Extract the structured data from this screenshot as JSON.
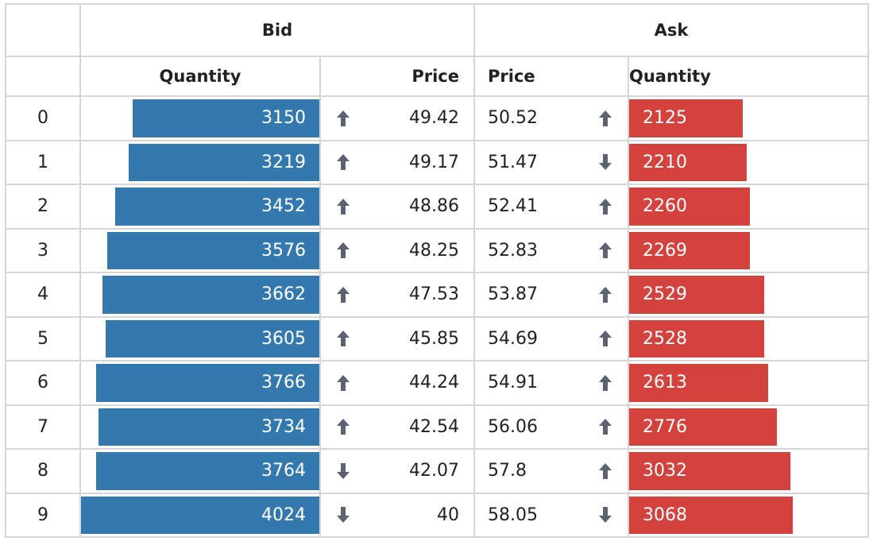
{
  "headers": {
    "bid": "Bid",
    "ask": "Ask",
    "bid_quantity": "Quantity",
    "bid_price": "Price",
    "ask_price": "Price",
    "ask_quantity": "Quantity"
  },
  "max_quantity": 4024,
  "colors": {
    "bid_bar": "#3479ae",
    "ask_bar": "#d4423e",
    "arrow": "#5d6272",
    "border": "#d6d6d6"
  },
  "rows": [
    {
      "index": "0",
      "bid_qty": "3150",
      "bid_dir": "up",
      "bid_price": "49.42",
      "ask_price": "50.52",
      "ask_dir": "up",
      "ask_qty": "2125"
    },
    {
      "index": "1",
      "bid_qty": "3219",
      "bid_dir": "up",
      "bid_price": "49.17",
      "ask_price": "51.47",
      "ask_dir": "down",
      "ask_qty": "2210"
    },
    {
      "index": "2",
      "bid_qty": "3452",
      "bid_dir": "up",
      "bid_price": "48.86",
      "ask_price": "52.41",
      "ask_dir": "up",
      "ask_qty": "2260"
    },
    {
      "index": "3",
      "bid_qty": "3576",
      "bid_dir": "up",
      "bid_price": "48.25",
      "ask_price": "52.83",
      "ask_dir": "up",
      "ask_qty": "2269"
    },
    {
      "index": "4",
      "bid_qty": "3662",
      "bid_dir": "up",
      "bid_price": "47.53",
      "ask_price": "53.87",
      "ask_dir": "up",
      "ask_qty": "2529"
    },
    {
      "index": "5",
      "bid_qty": "3605",
      "bid_dir": "up",
      "bid_price": "45.85",
      "ask_price": "54.69",
      "ask_dir": "up",
      "ask_qty": "2528"
    },
    {
      "index": "6",
      "bid_qty": "3766",
      "bid_dir": "up",
      "bid_price": "44.24",
      "ask_price": "54.91",
      "ask_dir": "up",
      "ask_qty": "2613"
    },
    {
      "index": "7",
      "bid_qty": "3734",
      "bid_dir": "up",
      "bid_price": "42.54",
      "ask_price": "56.06",
      "ask_dir": "up",
      "ask_qty": "2776"
    },
    {
      "index": "8",
      "bid_qty": "3764",
      "bid_dir": "down",
      "bid_price": "42.07",
      "ask_price": "57.8",
      "ask_dir": "up",
      "ask_qty": "3032"
    },
    {
      "index": "9",
      "bid_qty": "4024",
      "bid_dir": "down",
      "bid_price": "40",
      "ask_price": "58.05",
      "ask_dir": "down",
      "ask_qty": "3068"
    }
  ]
}
